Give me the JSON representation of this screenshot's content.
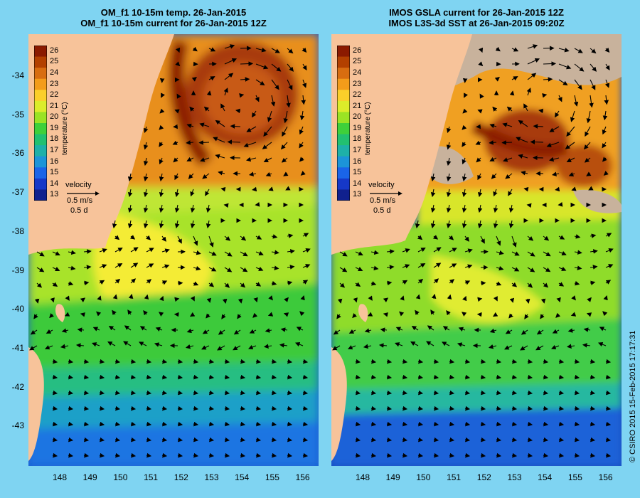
{
  "left_panel": {
    "title_line1": "OM_f1 10-15m temp. 26-Jan-2015",
    "title_line2": "OM_f1 10-15m current for 26-Jan-2015 12Z"
  },
  "right_panel": {
    "title_line1": "IMOS GSLA current for 26-Jan-2015 12Z",
    "title_line2": "IMOS L3S-3d SST at 26-Jan-2015 09:20Z"
  },
  "latitude_ticks": [
    "-34",
    "-35",
    "-36",
    "-37",
    "-38",
    "-39",
    "-40",
    "-41",
    "-42",
    "-43"
  ],
  "longitude_ticks": [
    "148",
    "149",
    "150",
    "151",
    "152",
    "153",
    "154",
    "155",
    "156"
  ],
  "colorbar": {
    "title": "temperature (°C)",
    "labels": [
      "26",
      "25",
      "24",
      "23",
      "22",
      "21",
      "20",
      "19",
      "18",
      "17",
      "16",
      "15",
      "14",
      "13"
    ],
    "colors": [
      "#8b1a00",
      "#b34000",
      "#d86d10",
      "#f39c1a",
      "#fbcf2a",
      "#dcec2a",
      "#9be324",
      "#3fd03a",
      "#22c070",
      "#1eb0a8",
      "#1c94d8",
      "#1a64e8",
      "#1638c8",
      "#10208e"
    ]
  },
  "velocity_legend": {
    "label": "velocity",
    "speed": "0.5 m/s",
    "duration": "0.5 d"
  },
  "credit": "© CSIRO 2015   15-Feb-2015 17:17:31",
  "colors": {
    "background": "#7fd4f2",
    "land": "#f7c39a",
    "cloud_mask": "#c8b29c"
  }
}
